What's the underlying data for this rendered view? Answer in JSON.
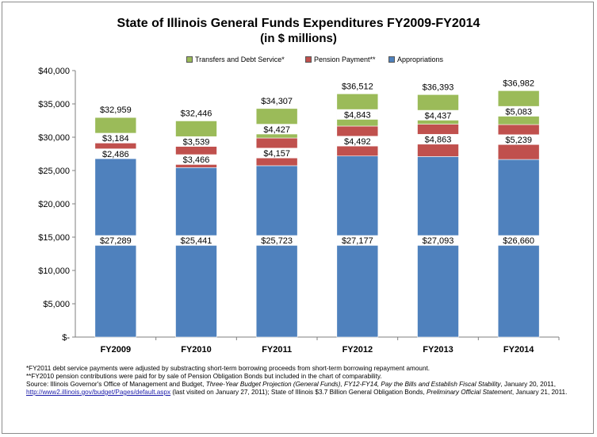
{
  "title_line1": "State of Illinois General Funds Expenditures FY2009-FY2014",
  "title_line2": "(in $ millions)",
  "chart_data": {
    "type": "bar",
    "stacked": true,
    "categories": [
      "FY2009",
      "FY2010",
      "FY2011",
      "FY2012",
      "FY2013",
      "FY2014"
    ],
    "series": [
      {
        "name": "Appropriations",
        "color": "#4f81bd",
        "values": [
          27289,
          25441,
          25723,
          27177,
          27093,
          26660
        ],
        "labels": [
          "$27,289",
          "$25,441",
          "$25,723",
          "$27,177",
          "$27,093",
          "$26,660"
        ]
      },
      {
        "name": "Pension Payment**",
        "color": "#c0504d",
        "values": [
          2486,
          3466,
          4157,
          4492,
          4863,
          5239
        ],
        "labels": [
          "$2,486",
          "$3,466",
          "$4,157",
          "$4,492",
          "$4,863",
          "$5,239"
        ]
      },
      {
        "name": "Transfers and Debt Service*",
        "color": "#9bbb59",
        "values": [
          3184,
          3539,
          4427,
          4843,
          4437,
          5083
        ],
        "labels": [
          "$3,184",
          "$3,539",
          "$4,427",
          "$4,843",
          "$4,437",
          "$5,083"
        ]
      }
    ],
    "totals": [
      32959,
      32446,
      34307,
      36512,
      36393,
      36982
    ],
    "total_labels": [
      "$32,959",
      "$32,446",
      "$34,307",
      "$36,512",
      "$36,393",
      "$36,982"
    ],
    "ylim": [
      0,
      40000
    ],
    "yticks": [
      0,
      5000,
      10000,
      15000,
      20000,
      25000,
      30000,
      35000,
      40000
    ],
    "ytick_labels": [
      "$-",
      "$5,000",
      "$10,000",
      "$15,000",
      "$20,000",
      "$25,000",
      "$30,000",
      "$35,000",
      "$40,000"
    ],
    "legend_order": [
      "Transfers and Debt Service*",
      "Pension Payment**",
      "Appropriations"
    ],
    "legend_position": "top",
    "grid": false
  },
  "notes": {
    "note1": "*FY2011 debt service payments were adjusted by substracting short-term borrowing proceeds from short-term borrowing repayment amount.",
    "note2": "**FY2010 pension contributions were paid for by sale of Pension Obligation Bonds but included in the chart of comparability.",
    "source_prefix": "Source: Illinois Governor's Office of Management and Budget, ",
    "source_italic1": "Three-Year Budget Projection (General Funds), FY12-FY14, Pay the Bills and Establish Fiscal Stability",
    "source_mid": ", January 20, 2011, ",
    "source_link": "http://www2.illinois.gov/budget/Pages/default.aspx",
    "source_after_link": " (last visited on January 27, 2011); State of Illinois $3.7 Billion General Obligation Bonds, ",
    "source_italic2": "Preliminary Official Statement",
    "source_end": ", January 21, 2011."
  }
}
